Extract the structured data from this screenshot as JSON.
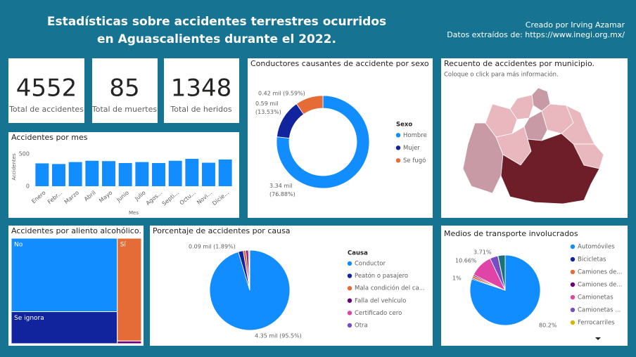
{
  "header": {
    "title_lines": [
      "Estadísticas sobre accidentes terrestres ocurridos",
      "en Aguascalientes durante el 2022."
    ],
    "credits": [
      "Creado por Irving Azamar",
      "Datos extraídos de: https://www.inegi.org.mx/"
    ]
  },
  "cards": [
    {
      "value": 4552,
      "label": "Total de accidentes"
    },
    {
      "value": 85,
      "label": "Total de muertes"
    },
    {
      "value": 1348,
      "label": "Total de heridos"
    }
  ],
  "map": {
    "title": "Recuento de accidentes por municipio.",
    "subtitle": "Coloque o click para más información."
  },
  "chart_data": [
    {
      "type": "bar",
      "title": "Accidentes por mes",
      "x_label": "Mes",
      "y_label": "Accidentes",
      "categories": [
        "Enero",
        "Febr...",
        "Marzo",
        "Abril",
        "Mayo",
        "Junio",
        "Julio",
        "Agos...",
        "Septi...",
        "Octu...",
        "Novi...",
        "Dicie..."
      ],
      "values": [
        355,
        345,
        375,
        395,
        390,
        360,
        375,
        360,
        395,
        425,
        365,
        415
      ],
      "color": "#118DFF",
      "ylim": [
        0,
        600
      ],
      "yticks": [
        0,
        500
      ],
      "grid": false
    },
    {
      "type": "donut",
      "title": "Conductores causantes de accidente por sexo",
      "legend_title": "Sexo",
      "categories": [
        "Hombre",
        "Mujer",
        "Se fugó"
      ],
      "values": [
        3.34,
        0.59,
        0.42
      ],
      "value_labels": [
        "3.34 mil (76.88%)",
        "0.59 mil (13.53%)",
        "0.42 mil (9.59%)"
      ],
      "colors": [
        "#118DFF",
        "#12239E",
        "#E66C37"
      ]
    },
    {
      "type": "treemap",
      "title": "Accidentes por aliento alcohólico.",
      "categories": [
        "No",
        "Se ignora",
        "Sí",
        null
      ],
      "values": [
        2480,
        1080,
        790,
        20
      ],
      "colors": [
        "#118DFF",
        "#12239E",
        "#E66C37",
        "#6B007B"
      ]
    },
    {
      "type": "pie",
      "title": "Porcentaje de accidentes por causa",
      "legend_title": "Causa",
      "categories": [
        "Conductor",
        "Peatón o pasajero",
        "Mala condición del ca...",
        "Falla del vehículo",
        "Certificado cero",
        "Otra"
      ],
      "values": [
        4.35,
        0.09,
        0.05,
        0.04,
        0.02,
        0.01
      ],
      "value_labels": [
        "4.35 mil (95.5%)",
        "0.09 mil (1.89%)",
        null,
        null,
        null,
        null
      ],
      "colors": [
        "#118DFF",
        "#12239E",
        "#E66C37",
        "#6B007B",
        "#E044A7",
        "#744EC2"
      ]
    },
    {
      "type": "pie",
      "title": "Medios de transporte involucrados",
      "categories": [
        "Automóviles",
        "Bicicletas",
        "Camiones de...",
        "Camiones de...",
        "Camionetas",
        "Camionetas ...",
        "Ferrocarriles",
        null
      ],
      "values": [
        80.2,
        0.5,
        1,
        0.6,
        10.66,
        3.71,
        0.1,
        3.23
      ],
      "value_labels": [
        "80.2%",
        null,
        "1%",
        null,
        "10.66%",
        "3.71%",
        null,
        null
      ],
      "colors": [
        "#118DFF",
        "#12239E",
        "#E66C37",
        "#6B007B",
        "#E044A7",
        "#744EC2",
        "#D9B300",
        "#197278"
      ]
    }
  ]
}
